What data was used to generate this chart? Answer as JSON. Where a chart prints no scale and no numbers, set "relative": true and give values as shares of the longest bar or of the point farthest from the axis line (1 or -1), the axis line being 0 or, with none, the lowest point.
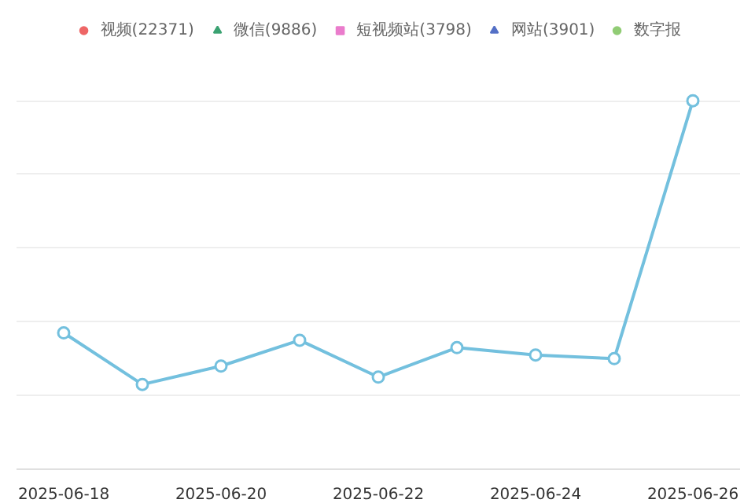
{
  "chart_data": {
    "type": "line",
    "relative": true,
    "x": [
      "2025-06-18",
      "2025-06-19",
      "2025-06-20",
      "2025-06-21",
      "2025-06-22",
      "2025-06-23",
      "2025-06-24",
      "2025-06-25",
      "2025-06-26"
    ],
    "xlim": [
      "2025-06-17T09:36",
      "2025-06-26T14:24"
    ],
    "xticks": [
      {
        "value": "2025-06-18",
        "label": "2025-06-18"
      },
      {
        "value": "2025-06-20",
        "label": "2025-06-20"
      },
      {
        "value": "2025-06-22",
        "label": "2025-06-22"
      },
      {
        "value": "2025-06-24",
        "label": "2025-06-24"
      },
      {
        "value": "2025-06-26",
        "label": "2025-06-26"
      }
    ],
    "series": [
      {
        "name": "视频(22371)",
        "color": "#ee6666",
        "marker": "circle",
        "values": [
          null,
          null,
          null,
          null,
          null,
          null,
          null,
          null,
          null
        ]
      },
      {
        "name": "微信(9886)",
        "color": "#3ba272",
        "marker": "triangle",
        "values": [
          null,
          null,
          null,
          null,
          null,
          null,
          null,
          null,
          null
        ]
      },
      {
        "name": "短视频站(3798)",
        "color": "#ea7ccc",
        "marker": "square",
        "values": [
          null,
          null,
          null,
          null,
          null,
          null,
          null,
          null,
          null
        ]
      },
      {
        "name": "网站(3901)",
        "color": "#5470c6",
        "marker": "triangle",
        "values": [
          null,
          null,
          null,
          null,
          null,
          null,
          null,
          null,
          null
        ]
      },
      {
        "name": "数字报",
        "color": "#91cc75",
        "marker": "circle",
        "values": [
          null,
          null,
          null,
          null,
          null,
          null,
          null,
          null,
          null
        ]
      },
      {
        "color": "#73c0de",
        "marker": "circle",
        "values": [
          0.37,
          0.23,
          0.28,
          0.35,
          0.25,
          0.33,
          0.31,
          0.3,
          1
        ]
      }
    ],
    "grid": "y",
    "legend": "top",
    "line_style": "solid"
  }
}
